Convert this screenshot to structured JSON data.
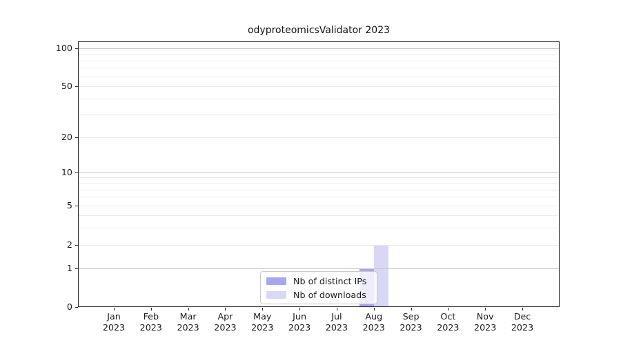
{
  "chart_data": {
    "type": "bar",
    "title": "odyproteomicsValidator 2023",
    "categories": [
      "Jan",
      "Feb",
      "Mar",
      "Apr",
      "May",
      "Jun",
      "Jul",
      "Aug",
      "Sep",
      "Oct",
      "Nov",
      "Dec"
    ],
    "x_year": "2023",
    "series": [
      {
        "name": "Nb of distinct IPs",
        "color": "#a7a7ee",
        "values": [
          0,
          0,
          0,
          0,
          0,
          0,
          0,
          1,
          0,
          0,
          0,
          0
        ]
      },
      {
        "name": "Nb of downloads",
        "color": "#d8d8f6",
        "values": [
          0,
          0,
          0,
          0,
          0,
          0,
          0,
          2,
          0,
          0,
          0,
          0
        ]
      }
    ],
    "yscale": "symlog",
    "ylim": [
      0,
      113
    ],
    "yticks": [
      0,
      1,
      2,
      5,
      10,
      20,
      50,
      100
    ],
    "gridlines": {
      "major": [
        1,
        10,
        100
      ],
      "minor": [
        2,
        3,
        4,
        5,
        6,
        7,
        8,
        9,
        20,
        30,
        40,
        50,
        60,
        70,
        80,
        90
      ]
    },
    "legend": {
      "position": "lower center",
      "labels": [
        "Nb of distinct IPs",
        "Nb of downloads"
      ]
    },
    "grid": true
  },
  "colors": {
    "major_grid": "#c6c6c6",
    "minor_grid": "#eaeaea",
    "axis": "#262626",
    "text": "#1a1a1a",
    "background": "#ffffff"
  }
}
